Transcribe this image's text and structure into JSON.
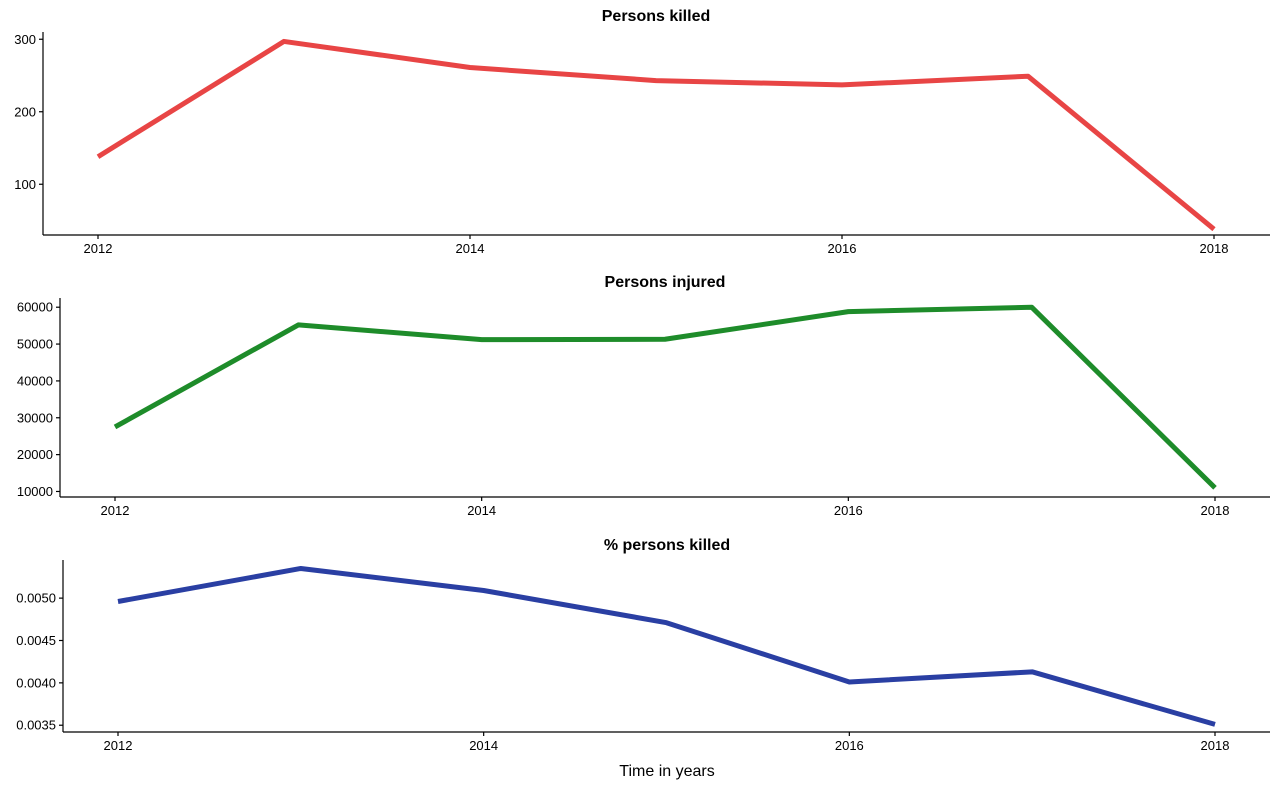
{
  "figure": {
    "xlabel": "Time in years"
  },
  "chart_data": [
    {
      "type": "line",
      "title": "Persons killed",
      "xlabel": "",
      "ylabel": "",
      "x": [
        2012,
        2013,
        2014,
        2015,
        2016,
        2017,
        2018
      ],
      "xticks": [
        "2012",
        "2014",
        "2016",
        "2018"
      ],
      "yticks": [
        "100",
        "200",
        "300"
      ],
      "ylim": [
        30,
        310
      ],
      "grid": false,
      "series": [
        {
          "values": [
            138,
            297,
            261,
            243,
            237,
            249,
            38
          ],
          "color": "#e84545"
        }
      ]
    },
    {
      "type": "line",
      "title": "Persons injured",
      "xlabel": "",
      "ylabel": "",
      "x": [
        2012,
        2013,
        2014,
        2015,
        2016,
        2017,
        2018
      ],
      "xticks": [
        "2012",
        "2014",
        "2016",
        "2018"
      ],
      "yticks": [
        "10000",
        "20000",
        "30000",
        "40000",
        "50000",
        "60000"
      ],
      "ylim": [
        8500,
        62500
      ],
      "grid": false,
      "series": [
        {
          "values": [
            27500,
            55200,
            51200,
            51300,
            58800,
            60000,
            11000
          ],
          "color": "#1e8c2a"
        }
      ]
    },
    {
      "type": "line",
      "title": "% persons killed",
      "xlabel": "Time in years",
      "ylabel": "",
      "x": [
        2012,
        2013,
        2014,
        2015,
        2016,
        2017,
        2018
      ],
      "xticks": [
        "2012",
        "2014",
        "2016",
        "2018"
      ],
      "yticks": [
        "0.0035",
        "0.0040",
        "0.0045",
        "0.0050"
      ],
      "ylim": [
        0.00342,
        0.00545
      ],
      "grid": false,
      "series": [
        {
          "values": [
            0.00496,
            0.00535,
            0.00509,
            0.00471,
            0.00401,
            0.00413,
            0.00351
          ],
          "color": "#2a3fa3"
        }
      ]
    }
  ]
}
